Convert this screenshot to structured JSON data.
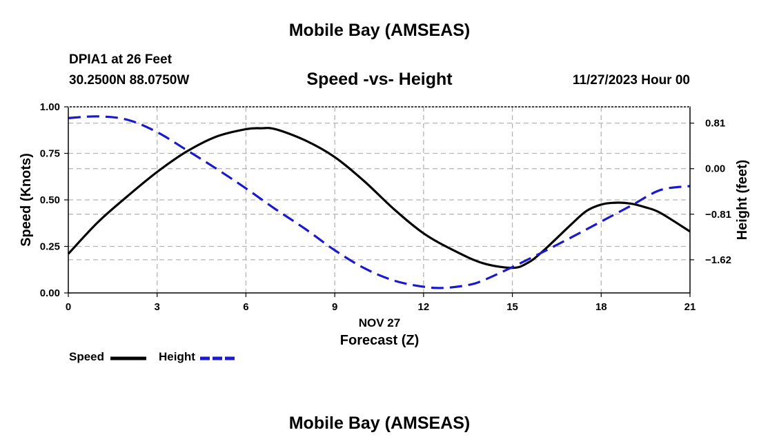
{
  "header": {
    "title": "Mobile Bay (AMSEAS)",
    "station": "DPIA1 at 26 Feet",
    "coords": "30.2500N  88.0750W",
    "subtitle": "Speed -vs- Height",
    "run_time": "11/27/2023 Hour 00"
  },
  "footer": {
    "title": "Mobile Bay (AMSEAS)"
  },
  "legend": {
    "speed_label": "Speed",
    "height_label": "Height"
  },
  "colors": {
    "speed": "#000000",
    "height": "#1a1acc",
    "grid": "#b4b4b4"
  },
  "chart_data": {
    "type": "line",
    "title": "Speed -vs- Height",
    "xlabel": "Forecast (Z)",
    "xlabel_date": "NOV 27",
    "ylabel": "Speed (Knots)",
    "y2label": "Height (feet)",
    "xlim": [
      0,
      21
    ],
    "ylim": [
      0,
      1
    ],
    "y2lim": [
      -2.21,
      1.1
    ],
    "x_ticks": [
      0,
      3,
      6,
      9,
      12,
      15,
      18,
      21
    ],
    "x_tick_labels": [
      "0",
      "3",
      "6",
      "9",
      "12",
      "15",
      "18",
      "21"
    ],
    "y_ticks": [
      0,
      0.25,
      0.5,
      0.75,
      1.0
    ],
    "y_tick_labels": [
      "0.00",
      "0.25",
      "0.50",
      "0.75",
      "1.00"
    ],
    "y2_ticks": [
      0.81,
      0,
      -0.81,
      -1.62
    ],
    "y2_tick_labels": [
      "0.81",
      "0.00",
      "−0.81",
      "−1.62"
    ],
    "grid": true,
    "series": [
      {
        "name": "Speed",
        "axis": "left",
        "style": "solid",
        "x": [
          0,
          1,
          2,
          3,
          4,
          5,
          6,
          6.5,
          7,
          8,
          9,
          10,
          11,
          12,
          13,
          14,
          15,
          15.5,
          16,
          17,
          17.5,
          18,
          18.5,
          19,
          19.5,
          20,
          21
        ],
        "values": [
          0.21,
          0.38,
          0.52,
          0.65,
          0.76,
          0.84,
          0.88,
          0.885,
          0.88,
          0.82,
          0.73,
          0.6,
          0.45,
          0.32,
          0.23,
          0.16,
          0.135,
          0.16,
          0.22,
          0.37,
          0.44,
          0.475,
          0.485,
          0.48,
          0.46,
          0.43,
          0.33
        ]
      },
      {
        "name": "Height",
        "axis": "right",
        "style": "dashed",
        "x": [
          0,
          1,
          2,
          3,
          4,
          5,
          6,
          7,
          8,
          9,
          10,
          11,
          12,
          12.7,
          13.5,
          14,
          15,
          16,
          17,
          18,
          19,
          20,
          21
        ],
        "values": [
          0.9,
          0.93,
          0.87,
          0.65,
          0.33,
          0.0,
          -0.35,
          -0.72,
          -1.07,
          -1.45,
          -1.77,
          -1.99,
          -2.1,
          -2.12,
          -2.07,
          -1.99,
          -1.75,
          -1.49,
          -1.22,
          -0.94,
          -0.66,
          -0.38,
          -0.31
        ]
      }
    ]
  }
}
